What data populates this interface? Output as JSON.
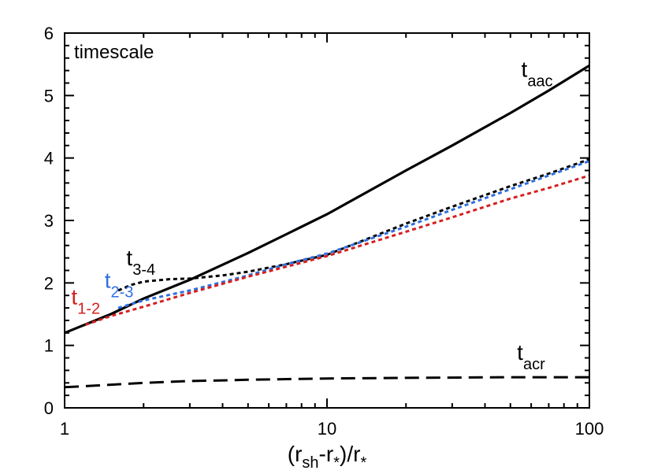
{
  "chart_data": {
    "type": "line",
    "title": "",
    "panel_label": "timescale",
    "xlabel": {
      "pre": "(r",
      "sub1": "sh",
      "mid": "-r",
      "sub2": "*",
      "post": ")/r",
      "sub3": "*"
    },
    "ylabel": "",
    "xscale": "log",
    "xlim": [
      1,
      100
    ],
    "ylim": [
      0,
      6
    ],
    "xticks": [
      1,
      10,
      100
    ],
    "xtick_labels": [
      "1",
      "10",
      "100"
    ],
    "yticks": [
      0,
      1,
      2,
      3,
      4,
      5,
      6
    ],
    "ytick_labels": [
      "0",
      "1",
      "2",
      "3",
      "4",
      "5",
      "6"
    ],
    "grid": false,
    "series": [
      {
        "name": "t_aac",
        "label_main": "t",
        "label_sub": "aac",
        "color": "#000000",
        "style": "solid",
        "x": [
          1,
          1.5,
          2,
          3,
          5,
          7,
          10,
          20,
          30,
          50,
          70,
          100
        ],
        "y": [
          1.2,
          1.5,
          1.75,
          2.05,
          2.48,
          2.78,
          3.1,
          3.8,
          4.2,
          4.72,
          5.08,
          5.48
        ]
      },
      {
        "name": "t_3-4",
        "label_main": "t",
        "label_sub": "3-4",
        "color": "#000000",
        "style": "dotted",
        "x": [
          1.6,
          1.8,
          2,
          2.5,
          3,
          4,
          5,
          7,
          10,
          20,
          30,
          50,
          70,
          100
        ],
        "y": [
          1.88,
          1.97,
          2.02,
          2.06,
          2.07,
          2.12,
          2.18,
          2.3,
          2.45,
          2.95,
          3.22,
          3.55,
          3.75,
          3.98
        ]
      },
      {
        "name": "t_2-3",
        "label_main": "t",
        "label_sub": "2-3",
        "color": "#2f6fe0",
        "style": "dotted",
        "x": [
          1.6,
          2,
          3,
          5,
          7,
          10,
          20,
          30,
          50,
          70,
          100
        ],
        "y": [
          1.6,
          1.72,
          1.88,
          2.12,
          2.3,
          2.47,
          2.9,
          3.17,
          3.5,
          3.72,
          3.95
        ]
      },
      {
        "name": "t_1-2",
        "label_main": "t",
        "label_sub": "1-2",
        "color": "#d42020",
        "style": "dotted",
        "x": [
          1.2,
          1.5,
          2,
          3,
          5,
          7,
          10,
          20,
          30,
          50,
          70,
          100
        ],
        "y": [
          1.33,
          1.47,
          1.62,
          1.84,
          2.1,
          2.26,
          2.43,
          2.82,
          3.05,
          3.35,
          3.52,
          3.72
        ]
      },
      {
        "name": "t_acr",
        "label_main": "t",
        "label_sub": "acr",
        "color": "#000000",
        "style": "dashed",
        "x": [
          1,
          1.5,
          2,
          3,
          4,
          5,
          7,
          10,
          20,
          50,
          100
        ],
        "y": [
          0.33,
          0.37,
          0.4,
          0.43,
          0.44,
          0.45,
          0.46,
          0.47,
          0.48,
          0.49,
          0.49
        ]
      }
    ],
    "annotations": [
      {
        "series": "t_aac",
        "x": 55,
        "y": 5.3
      },
      {
        "series": "t_3-4",
        "x": 1.72,
        "y": 2.28
      },
      {
        "series": "t_2-3",
        "x": 1.42,
        "y": 1.92
      },
      {
        "series": "t_1-2",
        "x": 1.06,
        "y": 1.66
      },
      {
        "series": "t_acr",
        "x": 53,
        "y": 0.77
      }
    ]
  }
}
